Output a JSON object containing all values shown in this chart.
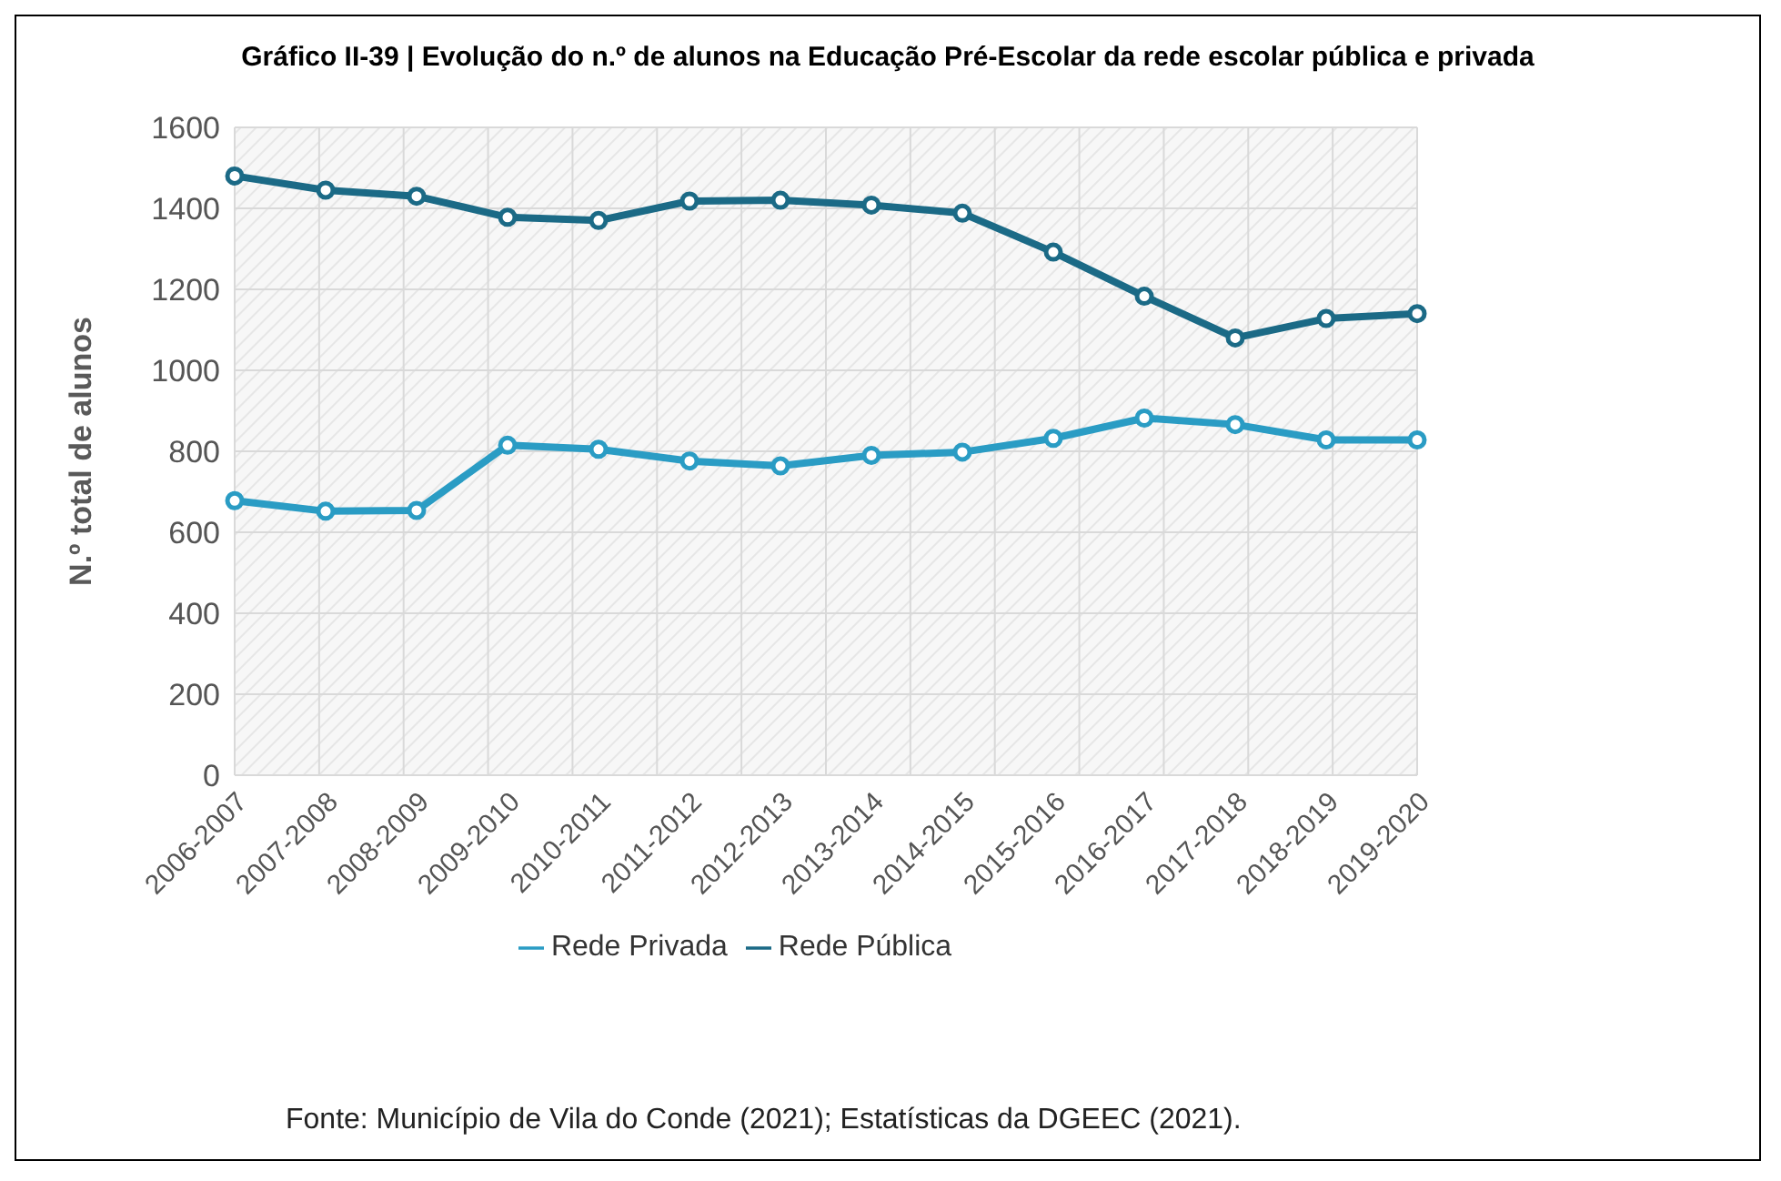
{
  "chart_data": {
    "type": "line",
    "title": "Gráfico II-39 | Evolução do n.º de alunos na Educação Pré-Escolar da rede escolar pública e privada",
    "ylabel": "N.º total de alunos",
    "categories": [
      "2006-2007",
      "2007-2008",
      "2008-2009",
      "2009-2010",
      "2010-2011",
      "2011-2012",
      "2012-2013",
      "2013-2014",
      "2014-2015",
      "2015-2016",
      "2016-2017",
      "2017-2018",
      "2018-2019",
      "2019-2020"
    ],
    "series": [
      {
        "name": "Rede Pública",
        "color": "#1b6a86",
        "values": [
          1480,
          1445,
          1430,
          1378,
          1370,
          1418,
          1420,
          1408,
          1388,
          1292,
          1183,
          1080,
          1128,
          1140
        ]
      },
      {
        "name": "Rede Privada",
        "color": "#2a9cc4",
        "values": [
          678,
          652,
          654,
          815,
          805,
          776,
          764,
          790,
          798,
          832,
          882,
          866,
          828,
          828
        ]
      }
    ],
    "ylim": [
      0,
      1600
    ],
    "yticks": [
      0,
      200,
      400,
      600,
      800,
      1000,
      1200,
      1400,
      1600
    ],
    "grid": true,
    "legend": "bottom",
    "marker": "circle",
    "line_style": "solid",
    "annotations": [
      "Fonte: Município de Vila do Conde (2021); Estatísticas da DGEEC (2021)."
    ]
  }
}
